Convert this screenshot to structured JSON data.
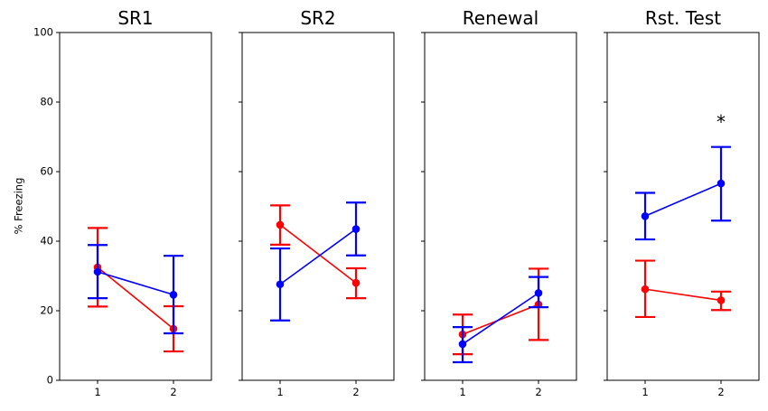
{
  "chart_data": {
    "type": "line",
    "ylabel": "% Freezing",
    "ylim": [
      0,
      100
    ],
    "yticks": [
      0,
      20,
      40,
      60,
      80,
      100
    ],
    "xticks": [
      1,
      2
    ],
    "xlim": [
      0.5,
      2.5
    ],
    "series_colors": [
      "#ff0000",
      "#0000ff"
    ],
    "shared_y": true,
    "panels": [
      {
        "title": "SR1",
        "annotation": null,
        "series": [
          {
            "color": "#ff0000",
            "x": [
              1,
              2
            ],
            "y": [
              32.5,
              14.8
            ],
            "err_low": [
              21.2,
              8.3
            ],
            "err_high": [
              43.8,
              21.3
            ]
          },
          {
            "color": "#0000ff",
            "x": [
              1,
              2
            ],
            "y": [
              31.2,
              24.6
            ],
            "err_low": [
              23.6,
              13.5
            ],
            "err_high": [
              38.9,
              35.8
            ]
          }
        ]
      },
      {
        "title": "SR2",
        "annotation": null,
        "series": [
          {
            "color": "#ff0000",
            "x": [
              1,
              2
            ],
            "y": [
              44.7,
              28.0
            ],
            "err_low": [
              39.0,
              23.6
            ],
            "err_high": [
              50.3,
              32.2
            ]
          },
          {
            "color": "#0000ff",
            "x": [
              1,
              2
            ],
            "y": [
              27.6,
              43.5
            ],
            "err_low": [
              17.2,
              35.9
            ],
            "err_high": [
              37.9,
              51.1
            ]
          }
        ]
      },
      {
        "title": "Renewal",
        "annotation": null,
        "series": [
          {
            "color": "#ff0000",
            "x": [
              1,
              2
            ],
            "y": [
              13.2,
              21.8
            ],
            "err_low": [
              7.5,
              11.6
            ],
            "err_high": [
              18.9,
              32.1
            ]
          },
          {
            "color": "#0000ff",
            "x": [
              1,
              2
            ],
            "y": [
              10.4,
              25.1
            ],
            "err_low": [
              5.2,
              21.0
            ],
            "err_high": [
              15.3,
              29.7
            ]
          }
        ]
      },
      {
        "title": "Rst. Test",
        "annotation": {
          "text": "*",
          "x": 2,
          "y": 72.5
        },
        "series": [
          {
            "color": "#ff0000",
            "x": [
              1,
              2
            ],
            "y": [
              26.2,
              23.0
            ],
            "err_low": [
              18.2,
              20.2
            ],
            "err_high": [
              34.4,
              25.5
            ]
          },
          {
            "color": "#0000ff",
            "x": [
              1,
              2
            ],
            "y": [
              47.2,
              56.6
            ],
            "err_low": [
              40.5,
              45.9
            ],
            "err_high": [
              53.9,
              67.1
            ]
          }
        ]
      }
    ]
  }
}
